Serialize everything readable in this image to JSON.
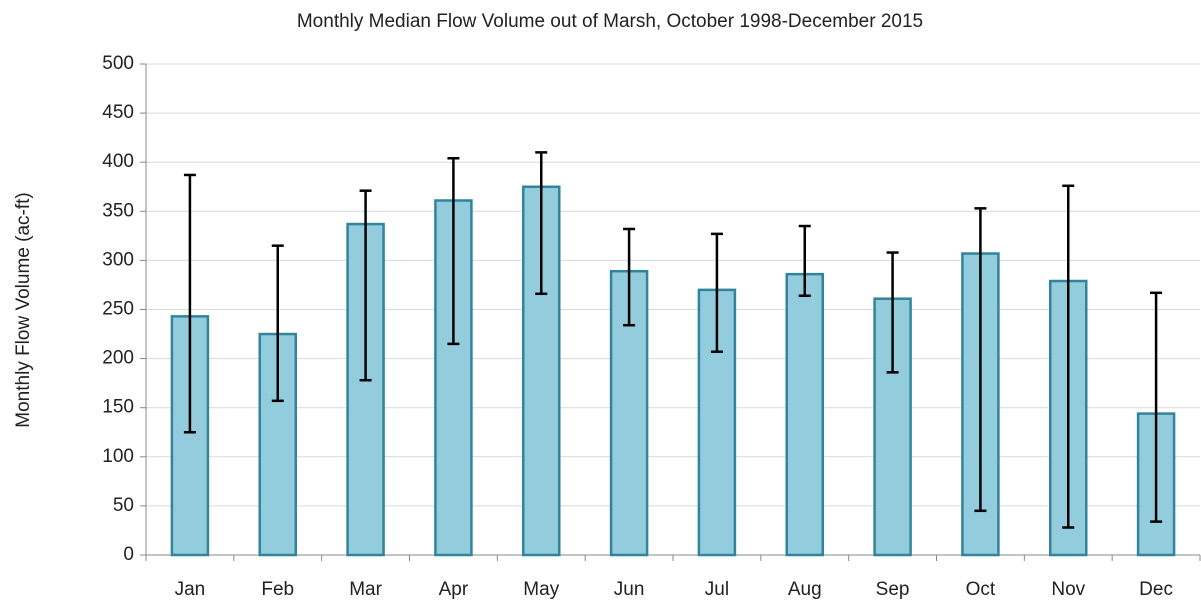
{
  "chart_data": {
    "type": "bar",
    "title": "Monthly Median Flow Volume out of Marsh, October 1998-December 2015",
    "y_label": "Monthly Flow Volume (ac-ft)",
    "categories": [
      "Jan",
      "Feb",
      "Mar",
      "Apr",
      "May",
      "Jun",
      "Jul",
      "Aug",
      "Sep",
      "Oct",
      "Nov",
      "Dec"
    ],
    "values": [
      243,
      225,
      337,
      361,
      375,
      289,
      270,
      286,
      261,
      307,
      279,
      144
    ],
    "lower": [
      125,
      157,
      178,
      215,
      266,
      234,
      207,
      264,
      186,
      45,
      28,
      34
    ],
    "upper": [
      387,
      315,
      371,
      404,
      410,
      332,
      327,
      335,
      308,
      353,
      376,
      267
    ],
    "color": "#93cddd",
    "edge_color": "#31849b",
    "ylim": [
      0,
      500
    ],
    "yticks": [
      0,
      50,
      100,
      150,
      200,
      250,
      300,
      350,
      400,
      450,
      500
    ],
    "grid": true
  }
}
